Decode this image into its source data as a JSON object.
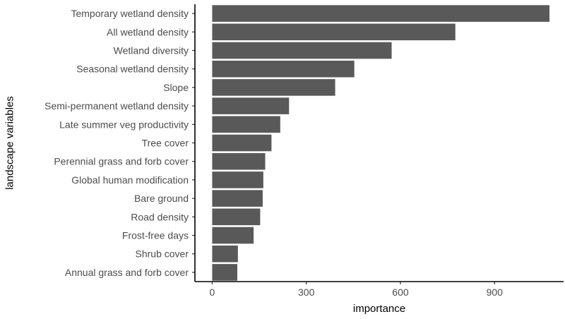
{
  "chart_data": {
    "type": "bar",
    "orientation": "horizontal",
    "categories": [
      "Temporary wetland density",
      "All wetland density",
      "Wetland diversity",
      "Seasonal wetland density",
      "Slope",
      "Semi-permanent wetland density",
      "Late summer veg productivity",
      "Tree cover",
      "Perennial grass and forb cover",
      "Global human modification",
      "Bare ground",
      "Road density",
      "Frost-free days",
      "Shrub cover",
      "Annual grass and forb cover"
    ],
    "values": [
      1075,
      775,
      572,
      453,
      392,
      245,
      217,
      189,
      169,
      163,
      161,
      153,
      132,
      82,
      80
    ],
    "xlabel": "importance",
    "ylabel": "landscape variables",
    "xlim": [
      -55,
      1120
    ],
    "xticks": [
      0,
      300,
      600,
      900
    ],
    "xtick_labels": [
      "0",
      "300",
      "600",
      "900"
    ],
    "grid": false,
    "legend": "none",
    "bar_color": "#595959"
  }
}
